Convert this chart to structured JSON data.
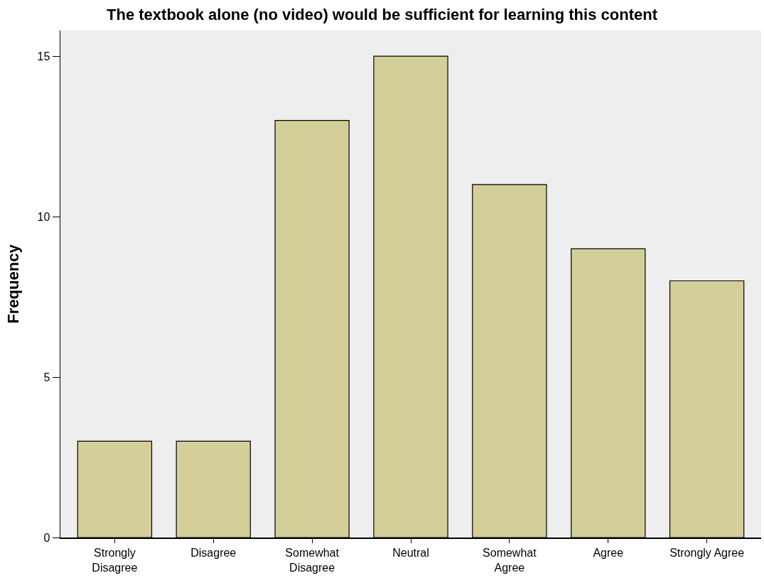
{
  "chart_data": {
    "type": "bar",
    "title": "The textbook alone (no video) would be sufficient for learning this content",
    "ylabel": "Frequency",
    "categories": [
      "Strongly\nDisagree",
      "Disagree",
      "Somewhat\nDisagree",
      "Neutral",
      "Somewhat\nAgree",
      "Agree",
      "Strongly Agree"
    ],
    "values": [
      3,
      3,
      13,
      15,
      11,
      9,
      8
    ],
    "color": "#d4cf98",
    "ylim": [
      0,
      15.8
    ],
    "yticks": [
      0,
      5,
      10,
      15
    ]
  }
}
